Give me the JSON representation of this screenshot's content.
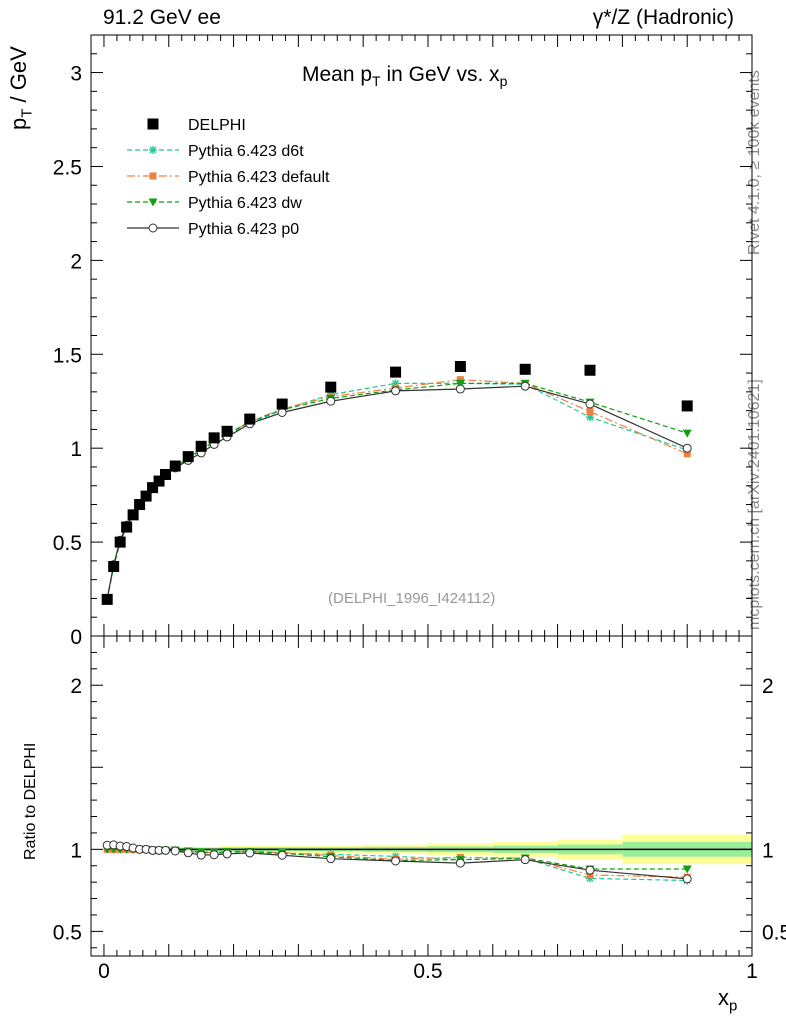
{
  "header": {
    "left_title": "91.2 GeV ee",
    "right_title": "γ*/Z (Hadronic)"
  },
  "side_text": {
    "rivet": "Rivet 4.1.0, ≥ 100k events",
    "mcplots": "mcplots.cern.ch [arXiv:2401.10621]"
  },
  "colors": {
    "data": "#000000",
    "d6t": "#20c997",
    "default": "#f08040",
    "dw": "#10a010",
    "p0": "#333333",
    "band_outer": "#ffff99",
    "band_inner": "#99ee99"
  },
  "chart_data": [
    {
      "type": "scatter",
      "title": "Mean p_T in GeV vs. x_p",
      "title_main": "Mean p",
      "title_sub_T": "T",
      "title_mid": " in GeV vs. x",
      "title_sub_p": "p",
      "ylabel": "p_T / GeV",
      "ylabel_main": "p",
      "ylabel_sub": "T",
      "ylabel_rest": " / GeV",
      "xlabel": "x_p",
      "xlabel_main": "x",
      "xlabel_sub": "p",
      "xlim": [
        -0.02,
        1.0
      ],
      "ylim": [
        0,
        3.2
      ],
      "yticks": [
        0,
        0.5,
        1,
        1.5,
        2,
        2.5,
        3
      ],
      "ytick_labels": [
        "0",
        "0.5",
        "1",
        "1.5",
        "2",
        "2.5",
        "3"
      ],
      "watermark": "(DELPHI_1996_I424112)",
      "legend_position": "top-left",
      "x": [
        0.005,
        0.015,
        0.025,
        0.035,
        0.045,
        0.055,
        0.065,
        0.075,
        0.085,
        0.095,
        0.11,
        0.13,
        0.15,
        0.17,
        0.19,
        0.225,
        0.275,
        0.35,
        0.45,
        0.55,
        0.65,
        0.75,
        0.9
      ],
      "series": [
        {
          "name": "DELPHI",
          "key": "data",
          "marker": "square",
          "line": "none",
          "values": [
            0.195,
            0.37,
            0.5,
            0.58,
            0.645,
            0.7,
            0.745,
            0.79,
            0.825,
            0.86,
            0.905,
            0.955,
            1.01,
            1.055,
            1.09,
            1.155,
            1.235,
            1.325,
            1.405,
            1.435,
            1.42,
            1.415,
            1.225
          ]
        },
        {
          "name": "Pythia 6.423 d6t",
          "key": "d6t",
          "marker": "star",
          "line": "dashed",
          "values": [
            0.195,
            0.37,
            0.5,
            0.58,
            0.645,
            0.7,
            0.745,
            0.785,
            0.82,
            0.855,
            0.9,
            0.94,
            0.99,
            1.03,
            1.07,
            1.13,
            1.205,
            1.285,
            1.345,
            1.345,
            1.34,
            1.165,
            0.99
          ]
        },
        {
          "name": "Pythia 6.423 default",
          "key": "default",
          "marker": "square-small",
          "line": "dashdot",
          "values": [
            0.195,
            0.37,
            0.5,
            0.58,
            0.645,
            0.7,
            0.745,
            0.785,
            0.82,
            0.855,
            0.9,
            0.945,
            0.99,
            1.035,
            1.075,
            1.14,
            1.21,
            1.275,
            1.32,
            1.365,
            1.345,
            1.195,
            0.97
          ]
        },
        {
          "name": "Pythia 6.423 dw",
          "key": "dw",
          "marker": "triangle-down",
          "line": "dashed",
          "values": [
            0.195,
            0.37,
            0.5,
            0.58,
            0.645,
            0.7,
            0.745,
            0.785,
            0.82,
            0.855,
            0.9,
            0.945,
            0.995,
            1.035,
            1.075,
            1.14,
            1.205,
            1.265,
            1.31,
            1.345,
            1.345,
            1.245,
            1.08
          ]
        },
        {
          "name": "Pythia 6.423 p0",
          "key": "p0",
          "marker": "circle-open",
          "line": "solid",
          "values": [
            0.2,
            0.38,
            0.51,
            0.59,
            0.65,
            0.7,
            0.745,
            0.785,
            0.82,
            0.855,
            0.895,
            0.935,
            0.975,
            1.02,
            1.06,
            1.13,
            1.19,
            1.25,
            1.305,
            1.315,
            1.33,
            1.235,
            1.0
          ]
        }
      ]
    },
    {
      "type": "scatter",
      "title": "Ratio to DELPHI",
      "ylabel": "Ratio to DELPHI",
      "xlim": [
        -0.02,
        1.0
      ],
      "ylim": [
        0.35,
        2.3
      ],
      "xticks": [
        0,
        0.5,
        1
      ],
      "xtick_labels": [
        "0",
        "0.5",
        "1"
      ],
      "yticks": [
        0.5,
        1,
        2
      ],
      "ytick_labels": [
        "0.5",
        "1",
        "2"
      ],
      "reference_line": 1,
      "band_bins": [
        0,
        0.01,
        0.02,
        0.03,
        0.04,
        0.05,
        0.06,
        0.07,
        0.08,
        0.09,
        0.1,
        0.12,
        0.14,
        0.16,
        0.18,
        0.2,
        0.25,
        0.3,
        0.4,
        0.5,
        0.6,
        0.7,
        0.8,
        1.0
      ],
      "band_inner": [
        0.01,
        0.01,
        0.01,
        0.01,
        0.01,
        0.01,
        0.01,
        0.01,
        0.01,
        0.01,
        0.01,
        0.01,
        0.01,
        0.01,
        0.012,
        0.012,
        0.012,
        0.012,
        0.015,
        0.018,
        0.022,
        0.03,
        0.045
      ],
      "band_outer": [
        0.015,
        0.015,
        0.015,
        0.015,
        0.015,
        0.015,
        0.015,
        0.015,
        0.015,
        0.015,
        0.015,
        0.015,
        0.015,
        0.015,
        0.02,
        0.02,
        0.02,
        0.022,
        0.028,
        0.035,
        0.045,
        0.06,
        0.09
      ],
      "series": [
        {
          "name": "Pythia 6.423 d6t",
          "key": "d6t",
          "values": [
            1.02,
            1.02,
            1.01,
            1.0,
            1.0,
            1.0,
            1.0,
            0.99,
            0.99,
            0.99,
            0.995,
            0.985,
            0.98,
            0.975,
            0.98,
            0.978,
            0.976,
            0.97,
            0.957,
            0.937,
            0.944,
            0.823,
            0.81
          ]
        },
        {
          "name": "Pythia 6.423 default",
          "key": "default",
          "values": [
            1.0,
            1.0,
            1.0,
            1.0,
            1.0,
            1.0,
            1.0,
            0.995,
            0.995,
            0.995,
            0.995,
            0.99,
            0.98,
            0.98,
            0.986,
            0.987,
            0.98,
            0.962,
            0.94,
            0.951,
            0.947,
            0.844,
            0.83
          ]
        },
        {
          "name": "Pythia 6.423 dw",
          "key": "dw",
          "values": [
            1.0,
            1.0,
            1.0,
            1.0,
            1.0,
            1.0,
            1.0,
            0.995,
            0.995,
            0.995,
            0.995,
            0.99,
            0.985,
            0.98,
            0.986,
            0.987,
            0.976,
            0.955,
            0.932,
            0.937,
            0.947,
            0.88,
            0.88
          ]
        },
        {
          "name": "Pythia 6.423 p0",
          "key": "p0",
          "values": [
            1.025,
            1.027,
            1.02,
            1.017,
            1.008,
            1.0,
            1.0,
            0.994,
            0.994,
            0.994,
            0.99,
            0.979,
            0.965,
            0.967,
            0.972,
            0.978,
            0.964,
            0.943,
            0.929,
            0.916,
            0.937,
            0.873,
            0.82
          ]
        }
      ]
    }
  ]
}
